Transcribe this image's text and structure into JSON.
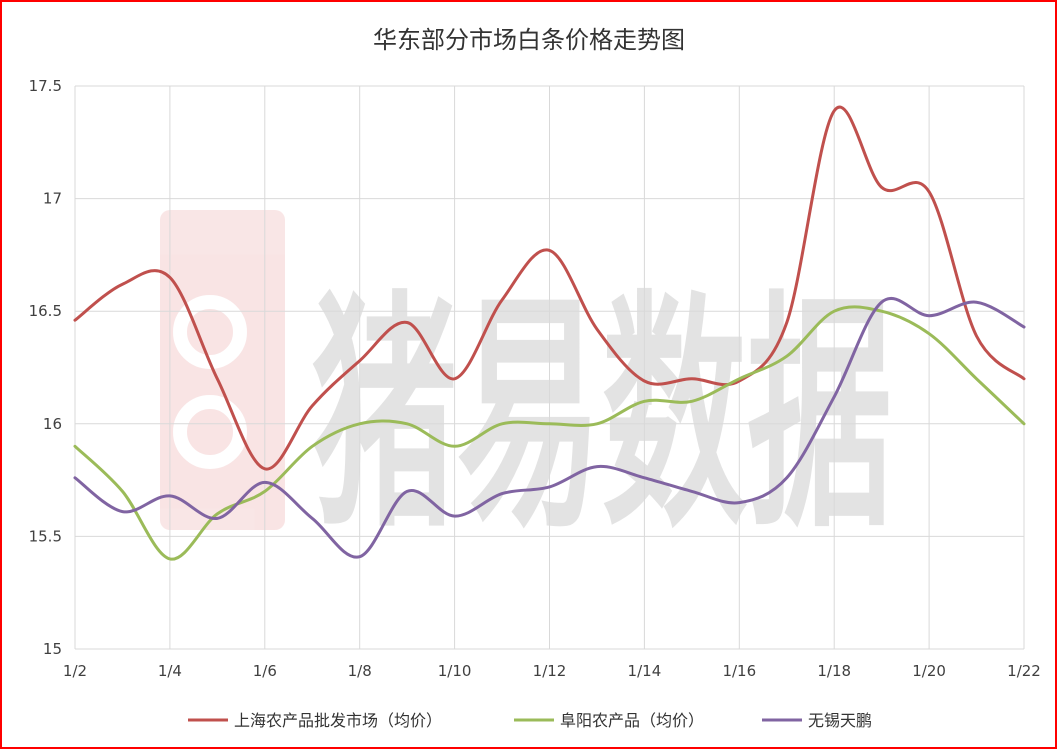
{
  "chart_data": {
    "type": "line",
    "title": "华东部分市场白条价格走势图",
    "categories": [
      "1/2",
      "1/3",
      "1/4",
      "1/5",
      "1/6",
      "1/7",
      "1/8",
      "1/9",
      "1/10",
      "1/11",
      "1/12",
      "1/13",
      "1/14",
      "1/15",
      "1/16",
      "1/17",
      "1/18",
      "1/19",
      "1/20",
      "1/21",
      "1/22"
    ],
    "x_tick_labels": [
      "1/2",
      "1/4",
      "1/6",
      "1/8",
      "1/10",
      "1/12",
      "1/14",
      "1/16",
      "1/18",
      "1/20",
      "1/22"
    ],
    "y_tick_labels": [
      "17.5",
      "17",
      "16.5",
      "16",
      "15.5",
      "15"
    ],
    "ylim": [
      15,
      17.5
    ],
    "grid": true,
    "legend_position": "bottom",
    "series": [
      {
        "name": "上海农产品批发市场（均价）",
        "color": "#c0504d",
        "values": [
          16.46,
          16.62,
          16.65,
          16.2,
          15.8,
          16.08,
          16.28,
          16.45,
          16.2,
          16.55,
          16.77,
          16.42,
          16.19,
          16.2,
          16.19,
          16.45,
          17.39,
          17.05,
          17.03,
          16.39,
          16.2
        ]
      },
      {
        "name": "阜阳农产品（均价）",
        "color": "#9bbb59",
        "values": [
          15.9,
          15.7,
          15.4,
          15.6,
          15.7,
          15.9,
          16.0,
          16.0,
          15.9,
          16.0,
          16.0,
          16.0,
          16.1,
          16.1,
          16.2,
          16.3,
          16.5,
          16.5,
          16.4,
          16.2,
          16.0
        ]
      },
      {
        "name": "无锡天鹏",
        "color": "#8064a2",
        "values": [
          15.76,
          15.61,
          15.68,
          15.58,
          15.74,
          15.58,
          15.41,
          15.7,
          15.59,
          15.69,
          15.72,
          15.81,
          15.76,
          15.7,
          15.65,
          15.76,
          16.12,
          16.54,
          16.48,
          16.54,
          16.43
        ]
      }
    ]
  },
  "watermark_text": "猪易数据"
}
